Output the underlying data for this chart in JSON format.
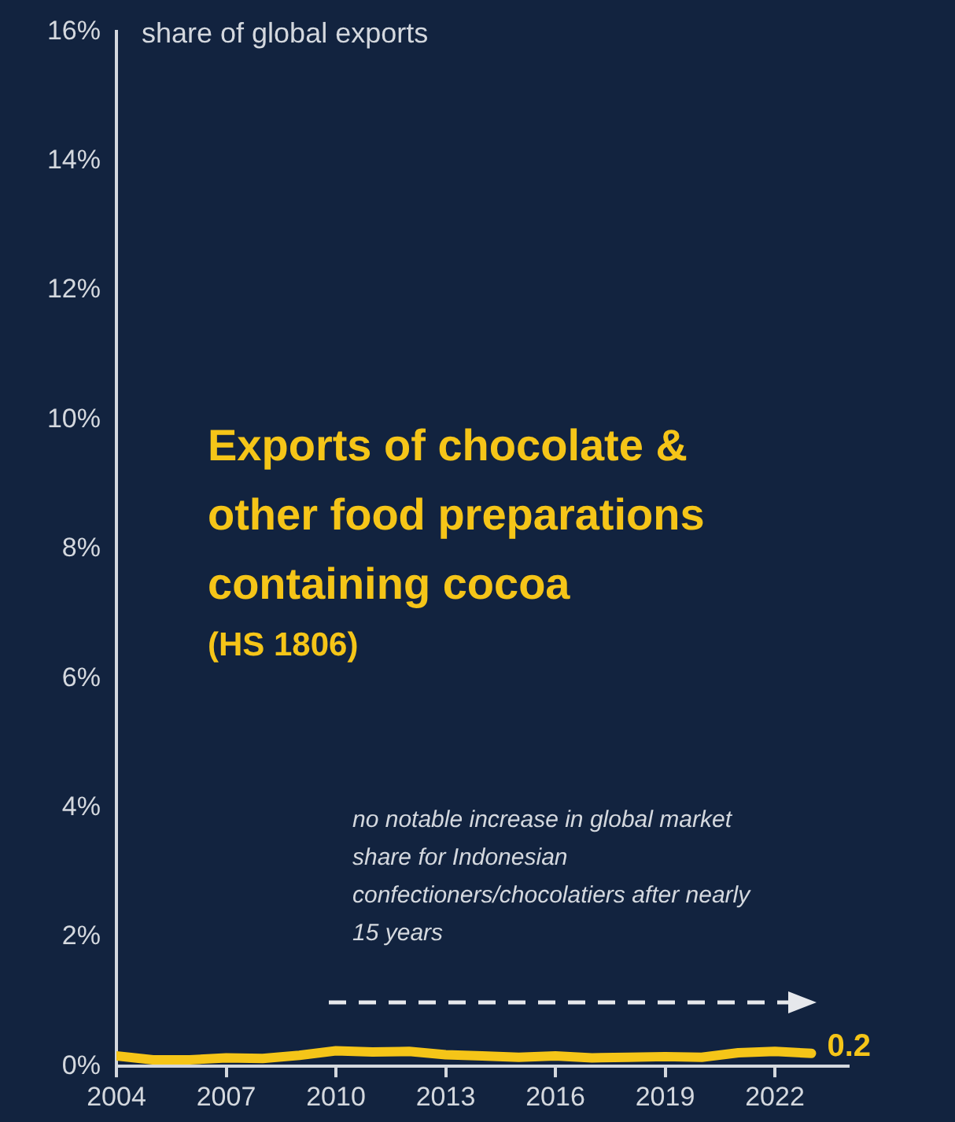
{
  "chart_data": {
    "type": "line",
    "title": "Exports of chocolate & other food preparations containing cocoa",
    "subtitle": "(HS 1806)",
    "ylabel": "share of global exports",
    "annotations": [
      "no notable increase in global market share for Indonesian confectioners/chocolatiers after nearly 15 years"
    ],
    "x": [
      2004,
      2005,
      2006,
      2007,
      2008,
      2009,
      2010,
      2011,
      2012,
      2013,
      2014,
      2015,
      2016,
      2017,
      2018,
      2019,
      2020,
      2021,
      2022,
      2023
    ],
    "series": [
      {
        "color": "#f5c518",
        "values": [
          0.16,
          0.1,
          0.1,
          0.13,
          0.12,
          0.17,
          0.24,
          0.22,
          0.23,
          0.18,
          0.16,
          0.14,
          0.16,
          0.13,
          0.14,
          0.15,
          0.14,
          0.21,
          0.23,
          0.2
        ],
        "value_labels": [
          null,
          null,
          null,
          null,
          null,
          null,
          null,
          null,
          null,
          null,
          null,
          null,
          null,
          null,
          null,
          null,
          null,
          null,
          null,
          "0.2"
        ]
      }
    ],
    "xlim": [
      2004,
      2024
    ],
    "xticks": [
      2004,
      2007,
      2010,
      2013,
      2016,
      2019,
      2022
    ],
    "ylim": [
      0,
      16
    ],
    "yticks": [
      {
        "value": 0,
        "label": "0%"
      },
      {
        "value": 2,
        "label": "2%"
      },
      {
        "value": 4,
        "label": "4%"
      },
      {
        "value": 6,
        "label": "6%"
      },
      {
        "value": 8,
        "label": "8%"
      },
      {
        "value": 10,
        "label": "10%"
      },
      {
        "value": 12,
        "label": "12%"
      },
      {
        "value": 14,
        "label": "14%"
      },
      {
        "value": 16,
        "label": "16%"
      }
    ],
    "grid": false,
    "legend": false,
    "marker": "none",
    "line_style": "solid"
  }
}
